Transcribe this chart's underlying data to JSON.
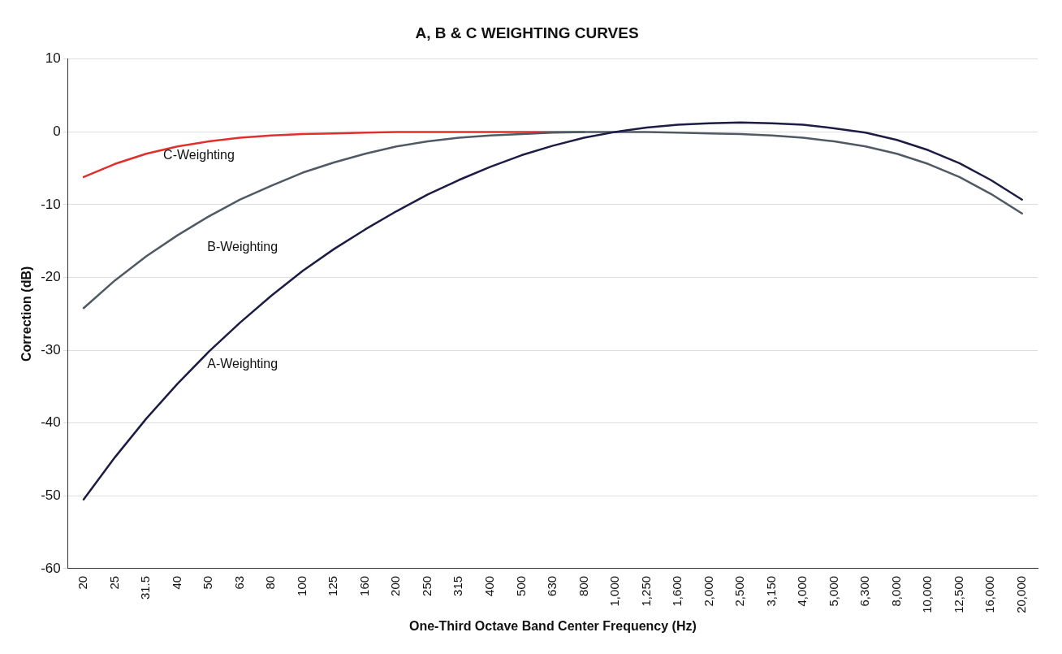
{
  "chart_data": {
    "type": "line",
    "title": "A, B & C WEIGHTING CURVES",
    "xlabel": "One-Third Octave Band Center Frequency (Hz)",
    "ylabel": "Correction (dB)",
    "categories": [
      "20",
      "25",
      "31.5",
      "40",
      "50",
      "63",
      "80",
      "100",
      "125",
      "160",
      "200",
      "250",
      "315",
      "400",
      "500",
      "630",
      "800",
      "1,000",
      "1,250",
      "1,600",
      "2,000",
      "2,500",
      "3,150",
      "4,000",
      "5,000",
      "6,300",
      "8,000",
      "10,000",
      "12,500",
      "16,000",
      "20,000"
    ],
    "series": [
      {
        "color": "#e0302c",
        "values": [
          -6.2,
          -4.4,
          -3.0,
          -2.0,
          -1.3,
          -0.8,
          -0.5,
          -0.3,
          -0.2,
          -0.1,
          0,
          0,
          0,
          0,
          0,
          0,
          0,
          null,
          null,
          null,
          null,
          null,
          null,
          null,
          null,
          null,
          null,
          null,
          null,
          null,
          null
        ]
      },
      {
        "color": "#505a64",
        "values": [
          -24.2,
          -20.4,
          -17.1,
          -14.2,
          -11.6,
          -9.3,
          -7.4,
          -5.6,
          -4.2,
          -3.0,
          -2.0,
          -1.3,
          -0.8,
          -0.5,
          -0.3,
          -0.1,
          0,
          0,
          0,
          -0.1,
          -0.2,
          -0.3,
          -0.5,
          -0.8,
          -1.3,
          -2.0,
          -3.0,
          -4.4,
          -6.2,
          -8.5,
          -11.2
        ]
      },
      {
        "color": "#1c1c44",
        "values": [
          -50.5,
          -44.7,
          -39.4,
          -34.6,
          -30.2,
          -26.2,
          -22.5,
          -19.1,
          -16.1,
          -13.4,
          -10.9,
          -8.6,
          -6.6,
          -4.8,
          -3.2,
          -1.9,
          -0.8,
          0,
          0.6,
          1.0,
          1.2,
          1.3,
          1.2,
          1.0,
          0.5,
          -0.1,
          -1.1,
          -2.5,
          -4.3,
          -6.6,
          -9.3
        ]
      }
    ],
    "ylim": [
      -60,
      10
    ],
    "yticks": [
      -60,
      -50,
      -40,
      -30,
      -20,
      -10,
      0,
      10
    ],
    "grid": "y",
    "legend": false,
    "marker": "none",
    "line_style": "solid",
    "annotations": [
      "C-Weighting",
      "B-Weighting",
      "A-Weighting"
    ]
  }
}
